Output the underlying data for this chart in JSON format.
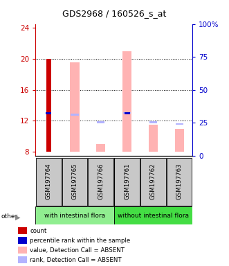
{
  "title": "GDS2968 / 160526_s_at",
  "samples": [
    "GSM197764",
    "GSM197765",
    "GSM197766",
    "GSM197761",
    "GSM197762",
    "GSM197763"
  ],
  "ylim_left": [
    7.5,
    24.5
  ],
  "ylim_right": [
    0,
    100
  ],
  "yticks_left": [
    8,
    12,
    16,
    20,
    24
  ],
  "yticks_right": [
    0,
    25,
    50,
    75,
    100
  ],
  "bar_bottom": 8,
  "count_values": [
    20.0,
    null,
    null,
    null,
    null,
    null
  ],
  "count_color": "#cc0000",
  "percentile_values": [
    13.0,
    null,
    null,
    13.0,
    null,
    null
  ],
  "percentile_color": "#0000cc",
  "absent_value_bars": [
    null,
    19.5,
    9.0,
    21.0,
    11.5,
    11.0
  ],
  "absent_value_color": "#ffb3b3",
  "absent_rank_bars": [
    null,
    12.8,
    11.8,
    13.0,
    11.8,
    11.6
  ],
  "absent_rank_color": "#b3b3ff",
  "bar_width": 0.35,
  "grid_color": "black",
  "grid_lines": [
    12,
    16,
    20
  ],
  "legend_items": [
    {
      "color": "#cc0000",
      "label": "count"
    },
    {
      "color": "#0000cc",
      "label": "percentile rank within the sample"
    },
    {
      "color": "#ffb3b3",
      "label": "value, Detection Call = ABSENT"
    },
    {
      "color": "#b3b3ff",
      "label": "rank, Detection Call = ABSENT"
    }
  ],
  "left_axis_color": "#cc0000",
  "right_axis_color": "#0000cc",
  "left_group_label": "with intestinal flora",
  "right_group_label": "without intestinal flora",
  "left_group_color": "#90ee90",
  "right_group_color": "#44dd44",
  "sample_bg_color": "#c8c8c8"
}
